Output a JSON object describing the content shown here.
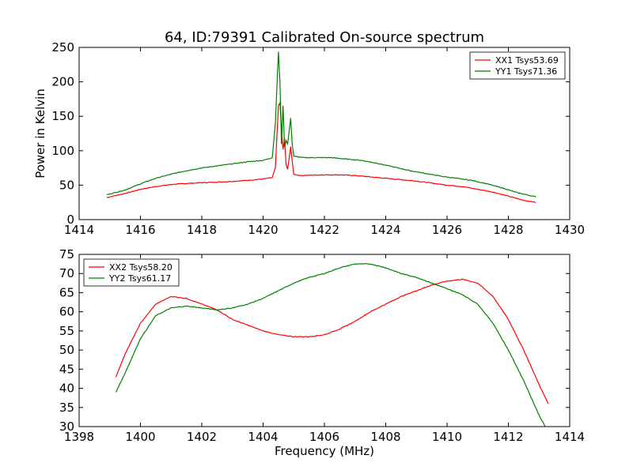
{
  "chart_data": [
    {
      "type": "line",
      "title": "64, ID:79391 Calibrated On-source spectrum",
      "xlabel": "",
      "ylabel": "Power in Kelvin",
      "xlim": [
        1414,
        1430
      ],
      "ylim": [
        0,
        250
      ],
      "xticks": [
        1414,
        1416,
        1418,
        1420,
        1422,
        1424,
        1426,
        1428,
        1430
      ],
      "yticks": [
        0,
        50,
        100,
        150,
        200,
        250
      ],
      "legend": "top-right",
      "series": [
        {
          "name": "XX1 Tsys53.69",
          "color": "#ff0000",
          "points": [
            [
              1414.9,
              32
            ],
            [
              1415.5,
              38
            ],
            [
              1416.0,
              44
            ],
            [
              1416.5,
              48
            ],
            [
              1417.0,
              51
            ],
            [
              1417.5,
              52.5
            ],
            [
              1418.0,
              53.5
            ],
            [
              1418.5,
              54.5
            ],
            [
              1419.0,
              55.5
            ],
            [
              1419.5,
              57
            ],
            [
              1420.0,
              59
            ],
            [
              1420.3,
              61
            ],
            [
              1420.4,
              75
            ],
            [
              1420.5,
              165
            ],
            [
              1420.55,
              170
            ],
            [
              1420.6,
              130
            ],
            [
              1420.65,
              102
            ],
            [
              1420.7,
              118
            ],
            [
              1420.75,
              80
            ],
            [
              1420.8,
              73
            ],
            [
              1420.9,
              106
            ],
            [
              1420.95,
              85
            ],
            [
              1421.0,
              66
            ],
            [
              1421.2,
              64
            ],
            [
              1421.6,
              64.5
            ],
            [
              1422.0,
              65
            ],
            [
              1422.5,
              65
            ],
            [
              1423.0,
              64
            ],
            [
              1423.5,
              62
            ],
            [
              1424.0,
              60
            ],
            [
              1424.5,
              58
            ],
            [
              1425.0,
              56
            ],
            [
              1425.5,
              53
            ],
            [
              1426.0,
              50
            ],
            [
              1426.5,
              48
            ],
            [
              1427.0,
              44
            ],
            [
              1427.5,
              40
            ],
            [
              1428.0,
              34
            ],
            [
              1428.5,
              28
            ],
            [
              1428.9,
              25
            ]
          ]
        },
        {
          "name": "YY1 Tsys71.36",
          "color": "#008000",
          "points": [
            [
              1414.9,
              36
            ],
            [
              1415.5,
              43
            ],
            [
              1416.0,
              52
            ],
            [
              1416.5,
              60
            ],
            [
              1417.0,
              66
            ],
            [
              1417.5,
              71
            ],
            [
              1418.0,
              75
            ],
            [
              1418.5,
              78
            ],
            [
              1419.0,
              81
            ],
            [
              1419.5,
              84
            ],
            [
              1420.0,
              86
            ],
            [
              1420.3,
              90
            ],
            [
              1420.4,
              140
            ],
            [
              1420.5,
              244
            ],
            [
              1420.55,
              200
            ],
            [
              1420.6,
              110
            ],
            [
              1420.65,
              165
            ],
            [
              1420.7,
              105
            ],
            [
              1420.75,
              115
            ],
            [
              1420.8,
              110
            ],
            [
              1420.9,
              147
            ],
            [
              1420.95,
              110
            ],
            [
              1421.0,
              92
            ],
            [
              1421.3,
              90
            ],
            [
              1421.8,
              90
            ],
            [
              1422.2,
              90
            ],
            [
              1422.7,
              88
            ],
            [
              1423.2,
              86
            ],
            [
              1423.7,
              82
            ],
            [
              1424.2,
              77
            ],
            [
              1424.8,
              71
            ],
            [
              1425.3,
              67
            ],
            [
              1425.8,
              63
            ],
            [
              1426.3,
              60
            ],
            [
              1426.8,
              57
            ],
            [
              1427.3,
              52
            ],
            [
              1427.8,
              46
            ],
            [
              1428.3,
              39
            ],
            [
              1428.9,
              33
            ]
          ]
        }
      ]
    },
    {
      "type": "line",
      "title": "",
      "xlabel": "Frequency (MHz)",
      "ylabel": "",
      "xlim": [
        1398,
        1414
      ],
      "ylim": [
        30,
        75
      ],
      "xticks": [
        1398,
        1400,
        1402,
        1404,
        1406,
        1408,
        1410,
        1412,
        1414
      ],
      "yticks": [
        30,
        35,
        40,
        45,
        50,
        55,
        60,
        65,
        70,
        75
      ],
      "legend": "top-left",
      "series": [
        {
          "name": "XX2 Tsys58.20",
          "color": "#ff0000",
          "points": [
            [
              1399.2,
              43
            ],
            [
              1399.5,
              49
            ],
            [
              1400.0,
              57
            ],
            [
              1400.5,
              62
            ],
            [
              1401.0,
              64
            ],
            [
              1401.5,
              63.5
            ],
            [
              1402.0,
              62
            ],
            [
              1402.5,
              60.5
            ],
            [
              1403.0,
              58
            ],
            [
              1403.5,
              56.5
            ],
            [
              1404.0,
              55
            ],
            [
              1404.5,
              54
            ],
            [
              1405.0,
              53.5
            ],
            [
              1405.5,
              53.5
            ],
            [
              1406.0,
              54
            ],
            [
              1406.5,
              55.5
            ],
            [
              1407.0,
              57.5
            ],
            [
              1407.5,
              60
            ],
            [
              1408.0,
              62
            ],
            [
              1408.5,
              64
            ],
            [
              1409.0,
              65.5
            ],
            [
              1409.5,
              67
            ],
            [
              1410.0,
              68
            ],
            [
              1410.5,
              68.5
            ],
            [
              1411.0,
              67.5
            ],
            [
              1411.5,
              64
            ],
            [
              1412.0,
              58
            ],
            [
              1412.5,
              50
            ],
            [
              1413.0,
              41
            ],
            [
              1413.3,
              36
            ]
          ]
        },
        {
          "name": "YY2 Tsys61.17",
          "color": "#008000",
          "points": [
            [
              1399.2,
              39
            ],
            [
              1399.5,
              44
            ],
            [
              1400.0,
              53
            ],
            [
              1400.5,
              59
            ],
            [
              1401.0,
              61
            ],
            [
              1401.5,
              61.5
            ],
            [
              1402.0,
              61
            ],
            [
              1402.5,
              60.5
            ],
            [
              1403.0,
              61
            ],
            [
              1403.5,
              62
            ],
            [
              1404.0,
              63.5
            ],
            [
              1404.5,
              65.5
            ],
            [
              1405.0,
              67.5
            ],
            [
              1405.5,
              69
            ],
            [
              1406.0,
              70
            ],
            [
              1406.5,
              71.5
            ],
            [
              1407.0,
              72.5
            ],
            [
              1407.5,
              72.5
            ],
            [
              1408.0,
              71.5
            ],
            [
              1408.5,
              70
            ],
            [
              1409.0,
              69
            ],
            [
              1409.5,
              67.5
            ],
            [
              1410.0,
              66
            ],
            [
              1410.5,
              64.5
            ],
            [
              1411.0,
              62
            ],
            [
              1411.5,
              57
            ],
            [
              1412.0,
              50
            ],
            [
              1412.5,
              42
            ],
            [
              1413.0,
              33
            ],
            [
              1413.2,
              30
            ]
          ]
        }
      ]
    }
  ]
}
